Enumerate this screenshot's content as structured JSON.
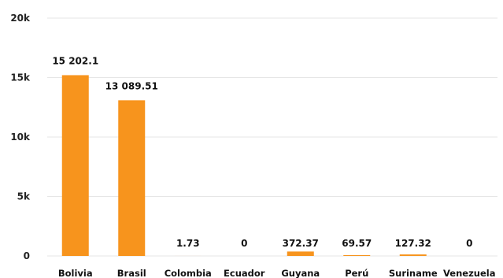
{
  "chart_data": {
    "type": "bar",
    "categories": [
      "Bolivia",
      "Brasil",
      "Colombia",
      "Ecuador",
      "Guyana",
      "Perú",
      "Suriname",
      "Venezuela"
    ],
    "values": [
      15202.1,
      13089.51,
      1.73,
      0,
      372.37,
      69.57,
      127.32,
      0
    ],
    "data_labels": [
      "15 202.1",
      "13 089.51",
      "1.73",
      "0",
      "372.37",
      "69.57",
      "127.32",
      "0"
    ],
    "y_ticks": [
      {
        "value": 0,
        "label": "0"
      },
      {
        "value": 5000,
        "label": "5k"
      },
      {
        "value": 10000,
        "label": "10k"
      },
      {
        "value": 15000,
        "label": "15k"
      },
      {
        "value": 20000,
        "label": "20k"
      }
    ],
    "ylim": [
      0,
      20000
    ],
    "grid": true,
    "bar_color": "#f7941d",
    "title": "",
    "xlabel": "",
    "ylabel": ""
  }
}
